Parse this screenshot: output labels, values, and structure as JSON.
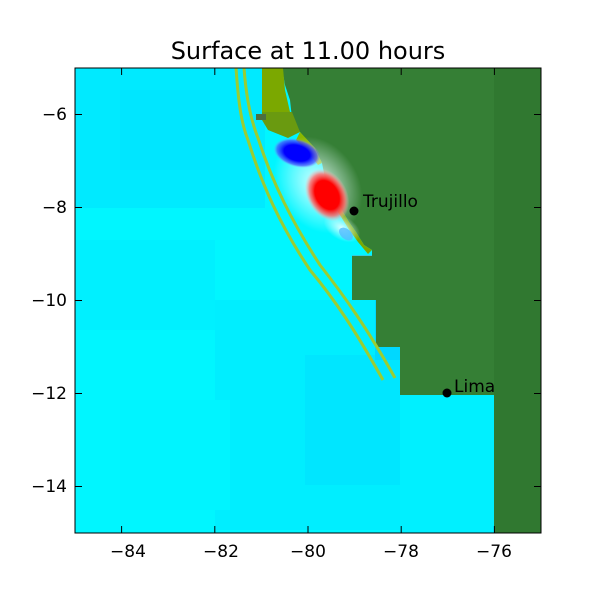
{
  "title": "Surface at 11.00 hours",
  "x_ticks": [
    "−84",
    "−82",
    "−80",
    "−78",
    "−76"
  ],
  "y_ticks": [
    "−6",
    "−8",
    "−10",
    "−12",
    "−14"
  ],
  "cities": [
    {
      "name": "Trujillo",
      "lon": -79.0,
      "lat": -8.1
    },
    {
      "name": "Lima",
      "lon": -77.0,
      "lat": -12.0
    }
  ],
  "chart_data": {
    "type": "heatmap",
    "title": "Surface at 11.00 hours",
    "xlim": [
      -85,
      -75
    ],
    "ylim": [
      -15,
      -5
    ],
    "xticks": [
      -84,
      -82,
      -80,
      -78,
      -76
    ],
    "yticks": [
      -6,
      -8,
      -10,
      -12,
      -14
    ],
    "grid": false,
    "annotations": [
      {
        "label": "Trujillo",
        "lon": -79.0,
        "lat": -8.1
      },
      {
        "label": "Lima",
        "lon": -77.0,
        "lat": -12.0
      }
    ],
    "colors": {
      "ocean": "#00ffff",
      "land": "#357f35",
      "positive_anomaly": "#ff0000",
      "negative_anomaly": "#0000ff",
      "contour": "#9acd32"
    }
  }
}
